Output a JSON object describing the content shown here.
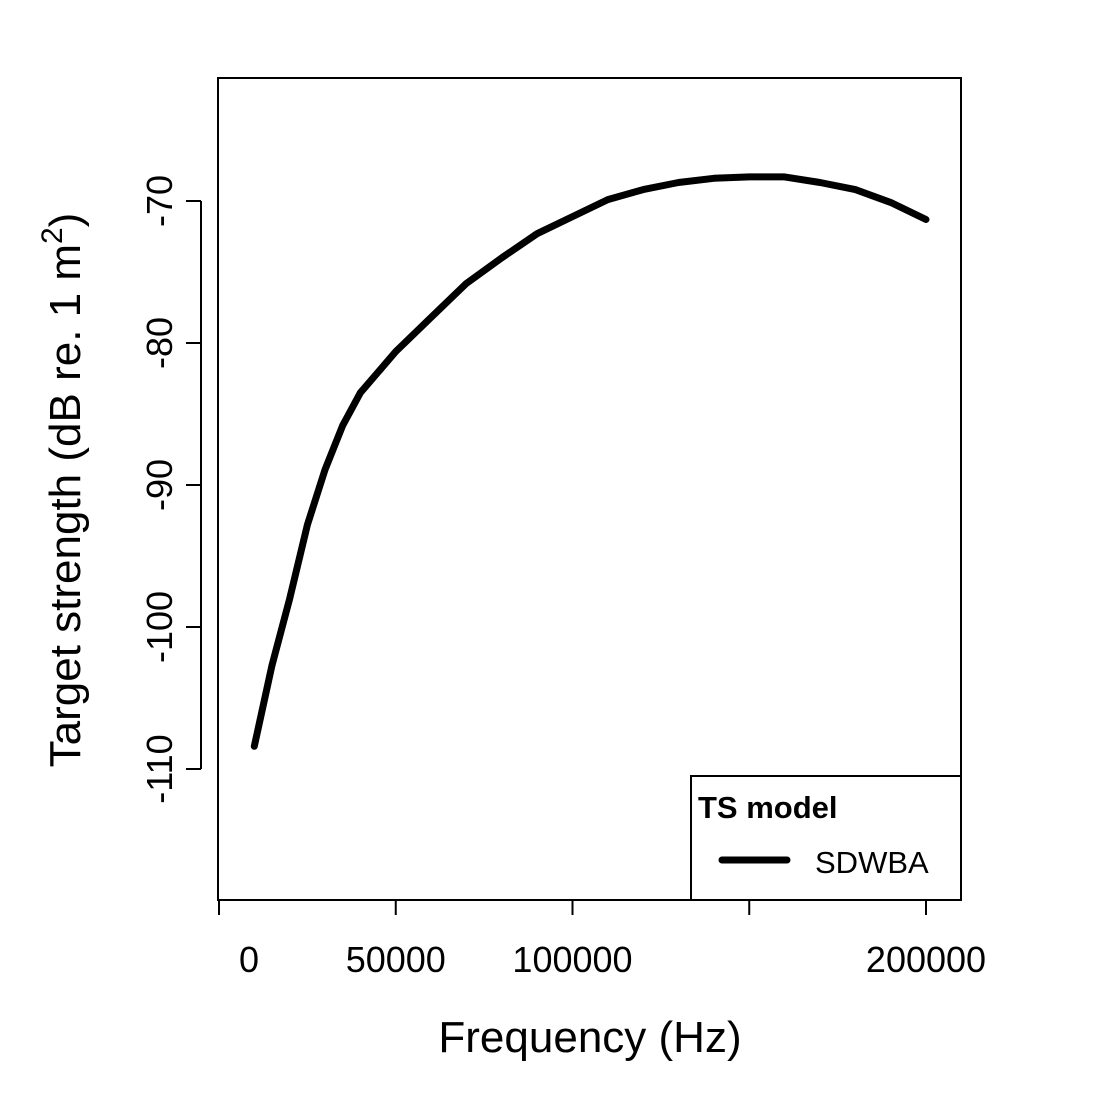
{
  "chart_data": {
    "type": "line",
    "title": "",
    "xlabel": "Frequency (Hz)",
    "ylabel": "Target strength (dB re. 1 m",
    "ylabel_sup": "2",
    "ylabel_close": ")",
    "xlim": [
      0,
      210000
    ],
    "ylim": [
      -119.2,
      -61.3
    ],
    "xticks": [
      0,
      50000,
      100000,
      150000,
      200000
    ],
    "xtick_labels": [
      "0",
      "50000",
      "100000",
      "",
      "200000"
    ],
    "yticks": [
      -110,
      -100,
      -90,
      -80,
      -70
    ],
    "ytick_labels": [
      "-110",
      "-100",
      "-90",
      "-80",
      "-70"
    ],
    "grid": false,
    "legend": {
      "title": "TS model",
      "position": "bottom-right",
      "entries": [
        "SDWBA"
      ]
    },
    "series": [
      {
        "name": "SDWBA",
        "color": "#000000",
        "x": [
          10000,
          15000,
          20000,
          25000,
          30000,
          35000,
          40000,
          50000,
          60000,
          70000,
          80000,
          90000,
          100000,
          110000,
          120000,
          130000,
          140000,
          150000,
          160000,
          170000,
          180000,
          190000,
          200000
        ],
        "y": [
          -108.4,
          -102.7,
          -98.0,
          -92.8,
          -88.9,
          -85.8,
          -83.5,
          -80.6,
          -78.2,
          -75.8,
          -74.0,
          -72.3,
          -71.1,
          -69.9,
          -69.2,
          -68.7,
          -68.4,
          -68.3,
          -68.3,
          -68.7,
          -69.2,
          -70.1,
          -71.3
        ]
      }
    ]
  }
}
